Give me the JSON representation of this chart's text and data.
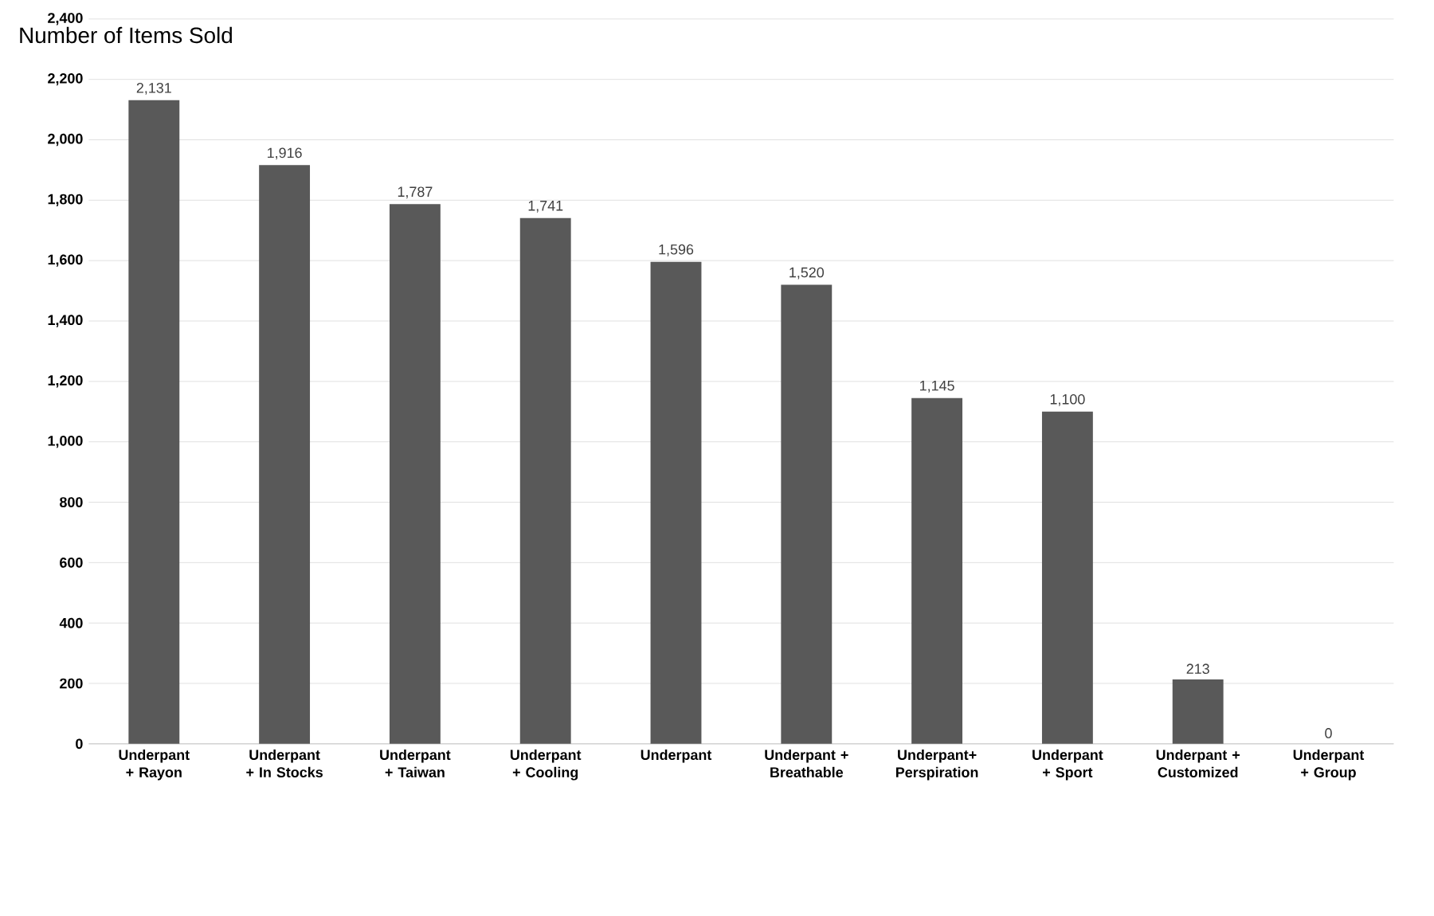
{
  "chart_data": {
    "type": "bar",
    "title": "Number of Items Sold",
    "categories": [
      "Underpant + Rayon",
      "Underpant + In Stocks",
      "Underpant + Taiwan",
      "Underpant + Cooling",
      "Underpant",
      "Underpant + Breathable",
      "Underpant+ Perspiration",
      "Underpant + Sport",
      "Underpant + Customized",
      "Underpant + Group"
    ],
    "values": [
      2131,
      1916,
      1787,
      1741,
      1596,
      1520,
      1145,
      1100,
      213,
      0
    ],
    "value_labels": [
      "2,131",
      "1,916",
      "1,787",
      "1,741",
      "1,596",
      "1,520",
      "1,145",
      "1,100",
      "213",
      "0"
    ],
    "color": "#595959",
    "ylim": [
      0,
      2400
    ],
    "yticks": [
      0,
      200,
      400,
      600,
      800,
      {
        "value": 1000,
        "label": "1,000"
      },
      {
        "value": 1200,
        "label": "1,200"
      },
      {
        "value": 1400,
        "label": "1,400"
      },
      {
        "value": 1600,
        "label": "1,600"
      },
      {
        "value": 1800,
        "label": "1,800"
      },
      {
        "value": 2000,
        "label": "2,000"
      },
      {
        "value": 2200,
        "label": "2,200"
      },
      {
        "value": 2400,
        "label": "2,400"
      }
    ],
    "grid": "y"
  }
}
